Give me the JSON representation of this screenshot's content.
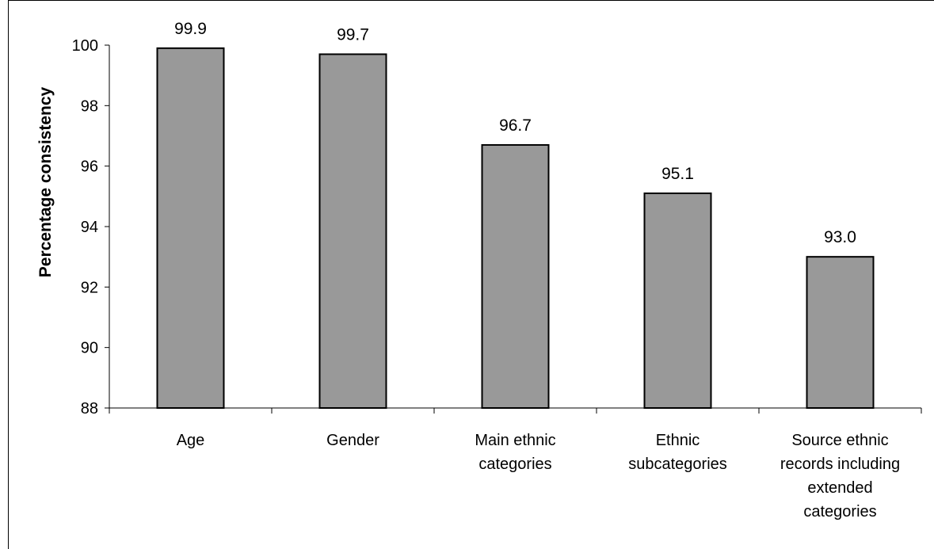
{
  "chart_data": {
    "type": "bar",
    "categories": [
      [
        "Age"
      ],
      [
        "Gender"
      ],
      [
        "Main ethnic",
        "categories"
      ],
      [
        "Ethnic",
        "subcategories"
      ],
      [
        "Source ethnic",
        "records including",
        "extended",
        "categories"
      ]
    ],
    "values": [
      99.9,
      99.7,
      96.7,
      95.1,
      93.0
    ],
    "value_labels": [
      "99.9",
      "99.7",
      "96.7",
      "95.1",
      "93.0"
    ],
    "ylabel": "Percentage consistency",
    "xlabel": "",
    "ylim": [
      88,
      100
    ],
    "yticks": [
      88,
      90,
      92,
      94,
      96,
      98,
      100
    ],
    "grid": false,
    "legend": "none",
    "colors": {
      "bar_fill": "#999999",
      "bar_stroke": "#000000",
      "axis": "#000000",
      "text": "#000000"
    }
  }
}
